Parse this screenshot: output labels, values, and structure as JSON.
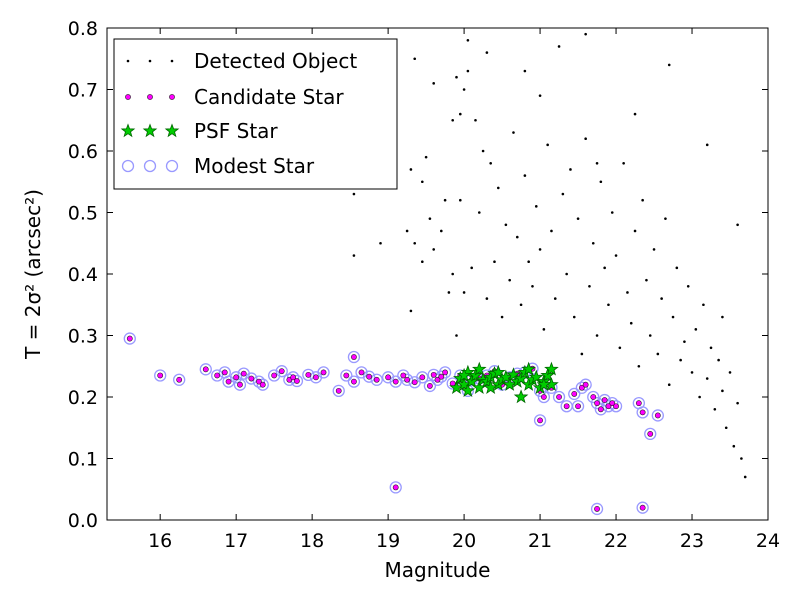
{
  "chart_data": {
    "type": "scatter",
    "title": "",
    "xlabel": "Magnitude",
    "ylabel": "T = 2σ² (arcsec²)",
    "xlim": [
      15.3,
      24.0
    ],
    "ylim": [
      0.0,
      0.8
    ],
    "xticks": [
      "16",
      "17",
      "18",
      "19",
      "20",
      "21",
      "22",
      "23",
      "24"
    ],
    "yticks": [
      "0.0",
      "0.1",
      "0.2",
      "0.3",
      "0.4",
      "0.5",
      "0.6",
      "0.7",
      "0.8"
    ],
    "legend": {
      "placement": "top-left"
    },
    "grid": false,
    "series": [
      {
        "name": "Detected Object",
        "marker": "dot",
        "color": "#000000",
        "x": [
          18.55,
          18.55,
          18.85,
          18.9,
          19.0,
          19.1,
          19.25,
          19.3,
          19.35,
          19.45,
          19.5,
          19.55,
          19.6,
          19.7,
          19.75,
          19.8,
          19.85,
          19.85,
          19.9,
          19.95,
          20.0,
          20.0,
          20.05,
          20.1,
          20.15,
          20.2,
          20.25,
          20.3,
          20.35,
          20.4,
          20.45,
          20.5,
          20.55,
          20.6,
          20.65,
          20.7,
          20.75,
          20.8,
          20.85,
          20.9,
          20.95,
          21.0,
          21.05,
          21.1,
          21.15,
          21.2,
          21.3,
          21.35,
          21.4,
          21.45,
          21.5,
          21.55,
          21.6,
          21.65,
          21.7,
          21.75,
          21.8,
          21.85,
          21.9,
          21.95,
          22.0,
          22.05,
          22.1,
          22.15,
          22.2,
          22.25,
          22.3,
          22.35,
          22.4,
          22.45,
          22.5,
          22.55,
          22.6,
          22.65,
          22.7,
          22.75,
          22.8,
          22.85,
          22.9,
          22.95,
          23.0,
          23.05,
          23.1,
          23.15,
          23.2,
          23.25,
          23.3,
          23.35,
          23.4,
          23.45,
          23.5,
          23.55,
          23.6,
          23.65,
          23.7,
          19.35,
          20.05,
          21.25,
          19.9,
          20.3,
          21.6,
          22.7,
          19.6,
          20.8,
          21.0,
          19.45,
          23.2,
          22.25,
          21.75,
          23.4,
          23.6,
          19.3,
          18.55,
          19.95
        ],
        "y": [
          0.53,
          0.43,
          0.7,
          0.45,
          0.76,
          0.62,
          0.47,
          0.34,
          0.45,
          0.55,
          0.59,
          0.49,
          0.44,
          0.47,
          0.52,
          0.37,
          0.4,
          0.65,
          0.3,
          0.52,
          0.7,
          0.37,
          0.73,
          0.41,
          0.65,
          0.5,
          0.6,
          0.36,
          0.58,
          0.42,
          0.54,
          0.33,
          0.48,
          0.39,
          0.63,
          0.46,
          0.35,
          0.56,
          0.42,
          0.38,
          0.51,
          0.44,
          0.31,
          0.61,
          0.47,
          0.36,
          0.53,
          0.4,
          0.57,
          0.33,
          0.49,
          0.27,
          0.62,
          0.38,
          0.45,
          0.3,
          0.55,
          0.41,
          0.35,
          0.5,
          0.43,
          0.28,
          0.58,
          0.37,
          0.32,
          0.47,
          0.25,
          0.52,
          0.39,
          0.3,
          0.44,
          0.27,
          0.36,
          0.49,
          0.22,
          0.33,
          0.41,
          0.26,
          0.29,
          0.38,
          0.24,
          0.31,
          0.2,
          0.35,
          0.23,
          0.28,
          0.18,
          0.26,
          0.21,
          0.15,
          0.24,
          0.12,
          0.19,
          0.1,
          0.07,
          0.75,
          0.78,
          0.77,
          0.72,
          0.76,
          0.79,
          0.74,
          0.71,
          0.73,
          0.69,
          0.42,
          0.61,
          0.66,
          0.58,
          0.33,
          0.48,
          0.57,
          0.55,
          0.66
        ]
      },
      {
        "name": "Candidate Star",
        "marker": "dot",
        "color": "#ff00ff",
        "x": [
          15.6,
          16.0,
          16.25,
          16.6,
          16.75,
          16.85,
          16.9,
          17.0,
          17.05,
          17.1,
          17.2,
          17.3,
          17.35,
          17.5,
          17.6,
          17.7,
          17.75,
          17.8,
          17.95,
          18.05,
          18.15,
          18.35,
          18.45,
          18.55,
          18.65,
          18.75,
          18.85,
          19.0,
          19.1,
          19.2,
          19.25,
          19.35,
          19.45,
          19.55,
          19.6,
          19.65,
          19.7,
          19.75,
          19.85,
          19.95,
          20.05,
          20.1,
          20.2,
          20.3,
          20.4,
          20.5,
          20.6,
          20.7,
          20.8,
          20.9,
          21.0,
          21.05,
          21.15,
          21.25,
          21.35,
          21.45,
          21.5,
          21.55,
          21.6,
          21.7,
          21.75,
          21.8,
          21.85,
          21.9,
          21.95,
          22.0,
          22.3,
          22.35,
          22.45,
          22.55,
          18.55,
          19.1,
          21.0,
          21.75,
          22.35
        ],
        "y": [
          0.295,
          0.235,
          0.228,
          0.245,
          0.235,
          0.24,
          0.225,
          0.232,
          0.22,
          0.238,
          0.23,
          0.225,
          0.22,
          0.235,
          0.242,
          0.228,
          0.232,
          0.226,
          0.236,
          0.232,
          0.24,
          0.21,
          0.235,
          0.225,
          0.24,
          0.233,
          0.228,
          0.232,
          0.225,
          0.235,
          0.228,
          0.224,
          0.232,
          0.218,
          0.236,
          0.228,
          0.233,
          0.24,
          0.222,
          0.235,
          0.21,
          0.228,
          0.23,
          0.235,
          0.242,
          0.22,
          0.232,
          0.238,
          0.24,
          0.246,
          0.21,
          0.2,
          0.215,
          0.2,
          0.185,
          0.205,
          0.185,
          0.215,
          0.22,
          0.2,
          0.19,
          0.18,
          0.195,
          0.185,
          0.19,
          0.185,
          0.19,
          0.175,
          0.14,
          0.17,
          0.265,
          0.053,
          0.162,
          0.018,
          0.02
        ]
      },
      {
        "name": "PSF Star",
        "marker": "star",
        "color": "#00cc00",
        "x": [
          19.9,
          19.95,
          20.0,
          20.05,
          20.1,
          20.15,
          20.2,
          20.2,
          20.25,
          20.3,
          20.35,
          20.4,
          20.45,
          20.45,
          20.5,
          20.55,
          20.6,
          20.65,
          20.7,
          20.75,
          20.8,
          20.85,
          20.85,
          20.9,
          20.95,
          21.0,
          21.05,
          21.1,
          21.15,
          21.15,
          20.05,
          20.35,
          20.75,
          21.05,
          20.0
        ],
        "y": [
          0.215,
          0.23,
          0.22,
          0.24,
          0.225,
          0.235,
          0.245,
          0.215,
          0.228,
          0.225,
          0.232,
          0.238,
          0.22,
          0.24,
          0.228,
          0.232,
          0.22,
          0.236,
          0.225,
          0.23,
          0.24,
          0.245,
          0.22,
          0.228,
          0.232,
          0.215,
          0.225,
          0.235,
          0.245,
          0.22,
          0.21,
          0.215,
          0.2,
          0.22,
          0.235
        ]
      },
      {
        "name": "Modest Star",
        "marker": "circle",
        "color": "#9999ff",
        "x": [
          15.6,
          16.0,
          16.25,
          16.6,
          16.75,
          16.85,
          16.9,
          17.0,
          17.05,
          17.1,
          17.2,
          17.3,
          17.35,
          17.5,
          17.6,
          17.7,
          17.75,
          17.8,
          17.95,
          18.05,
          18.15,
          18.35,
          18.45,
          18.55,
          18.65,
          18.75,
          18.85,
          19.0,
          19.1,
          19.2,
          19.25,
          19.35,
          19.45,
          19.55,
          19.6,
          19.65,
          19.7,
          19.75,
          19.85,
          19.95,
          20.05,
          20.1,
          20.2,
          20.3,
          20.4,
          20.5,
          20.6,
          20.7,
          20.8,
          20.9,
          21.0,
          21.05,
          21.15,
          21.25,
          21.35,
          21.45,
          21.5,
          21.55,
          21.6,
          21.7,
          21.75,
          21.8,
          21.85,
          21.9,
          21.95,
          22.0,
          22.3,
          22.35,
          22.45,
          22.55,
          18.55,
          19.1,
          21.0,
          21.75,
          22.35
        ],
        "y": [
          0.295,
          0.235,
          0.228,
          0.245,
          0.235,
          0.24,
          0.225,
          0.232,
          0.22,
          0.238,
          0.23,
          0.225,
          0.22,
          0.235,
          0.242,
          0.228,
          0.232,
          0.226,
          0.236,
          0.232,
          0.24,
          0.21,
          0.235,
          0.225,
          0.24,
          0.233,
          0.228,
          0.232,
          0.225,
          0.235,
          0.228,
          0.224,
          0.232,
          0.218,
          0.236,
          0.228,
          0.233,
          0.24,
          0.222,
          0.235,
          0.21,
          0.228,
          0.23,
          0.235,
          0.242,
          0.22,
          0.232,
          0.238,
          0.24,
          0.246,
          0.21,
          0.2,
          0.215,
          0.2,
          0.185,
          0.205,
          0.185,
          0.215,
          0.22,
          0.2,
          0.19,
          0.18,
          0.195,
          0.185,
          0.19,
          0.185,
          0.19,
          0.175,
          0.14,
          0.17,
          0.265,
          0.053,
          0.162,
          0.018,
          0.02
        ]
      }
    ]
  }
}
